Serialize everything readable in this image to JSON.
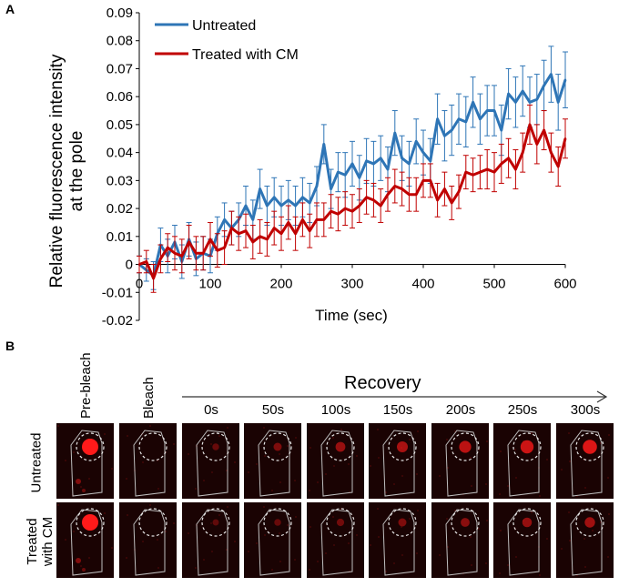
{
  "panel_a": {
    "letter": "A",
    "chart_data": {
      "type": "line",
      "xlabel": "Time (sec)",
      "ylabel_lines": [
        "Relative fluorescence intensity",
        "at the pole"
      ],
      "xlim": [
        0,
        600
      ],
      "ylim": [
        -0.02,
        0.09
      ],
      "xticks": [
        0,
        100,
        200,
        300,
        400,
        500,
        600
      ],
      "xtick_labels": [
        "0",
        "100",
        "200",
        "300",
        "400",
        "500",
        "600"
      ],
      "yticks": [
        -0.02,
        -0.01,
        0,
        0.01,
        0.02,
        0.03,
        0.04,
        0.05,
        0.06,
        0.07,
        0.08,
        0.09
      ],
      "ytick_labels": [
        "-0.02",
        "-0.01",
        "0",
        "0.01",
        "0.02",
        "0.03",
        "0.04",
        "0.05",
        "0.06",
        "0.07",
        "0.08",
        "0.09"
      ],
      "legend_position": "top-left",
      "series": [
        {
          "name": "Untreated",
          "color": "#2e75b6",
          "x": [
            0,
            10,
            20,
            30,
            40,
            50,
            60,
            70,
            80,
            90,
            100,
            110,
            120,
            130,
            140,
            150,
            160,
            170,
            180,
            190,
            200,
            210,
            220,
            230,
            240,
            250,
            260,
            270,
            280,
            290,
            300,
            310,
            320,
            330,
            340,
            350,
            360,
            370,
            380,
            390,
            400,
            410,
            420,
            430,
            440,
            450,
            460,
            470,
            480,
            490,
            500,
            510,
            520,
            530,
            540,
            550,
            560,
            570,
            580,
            590,
            600
          ],
          "values": [
            0.0,
            -0.002,
            -0.004,
            0.007,
            0.003,
            0.008,
            0.001,
            0.009,
            0.002,
            0.004,
            0.003,
            0.011,
            0.016,
            0.013,
            0.016,
            0.021,
            0.016,
            0.027,
            0.021,
            0.024,
            0.021,
            0.023,
            0.021,
            0.024,
            0.022,
            0.028,
            0.043,
            0.027,
            0.033,
            0.032,
            0.036,
            0.031,
            0.037,
            0.036,
            0.038,
            0.034,
            0.047,
            0.038,
            0.036,
            0.044,
            0.04,
            0.037,
            0.052,
            0.046,
            0.048,
            0.052,
            0.051,
            0.058,
            0.052,
            0.055,
            0.055,
            0.048,
            0.061,
            0.058,
            0.062,
            0.058,
            0.059,
            0.064,
            0.068,
            0.058,
            0.066
          ],
          "errors": [
            0.003,
            0.004,
            0.005,
            0.006,
            0.006,
            0.006,
            0.006,
            0.006,
            0.006,
            0.006,
            0.006,
            0.006,
            0.006,
            0.006,
            0.006,
            0.007,
            0.007,
            0.007,
            0.007,
            0.007,
            0.007,
            0.007,
            0.007,
            0.007,
            0.007,
            0.007,
            0.007,
            0.007,
            0.007,
            0.008,
            0.008,
            0.008,
            0.008,
            0.008,
            0.008,
            0.008,
            0.008,
            0.008,
            0.008,
            0.008,
            0.008,
            0.008,
            0.009,
            0.009,
            0.009,
            0.009,
            0.009,
            0.009,
            0.009,
            0.009,
            0.009,
            0.009,
            0.009,
            0.009,
            0.009,
            0.009,
            0.009,
            0.009,
            0.01,
            0.01,
            0.01
          ]
        },
        {
          "name": "Treated with CM",
          "color": "#c00000",
          "x": [
            0,
            10,
            20,
            30,
            40,
            50,
            60,
            70,
            80,
            90,
            100,
            110,
            120,
            130,
            140,
            150,
            160,
            170,
            180,
            190,
            200,
            210,
            220,
            230,
            240,
            250,
            260,
            270,
            280,
            290,
            300,
            310,
            320,
            330,
            340,
            350,
            360,
            370,
            380,
            390,
            400,
            410,
            420,
            430,
            440,
            450,
            460,
            470,
            480,
            490,
            500,
            510,
            520,
            530,
            540,
            550,
            560,
            570,
            580,
            590,
            600
          ],
          "values": [
            0.0,
            0.001,
            -0.005,
            0.002,
            0.006,
            0.004,
            0.003,
            0.008,
            0.004,
            0.004,
            0.009,
            0.005,
            0.006,
            0.013,
            0.011,
            0.012,
            0.008,
            0.01,
            0.009,
            0.013,
            0.011,
            0.015,
            0.011,
            0.016,
            0.012,
            0.016,
            0.016,
            0.019,
            0.018,
            0.02,
            0.019,
            0.021,
            0.024,
            0.023,
            0.021,
            0.025,
            0.028,
            0.027,
            0.025,
            0.025,
            0.03,
            0.03,
            0.023,
            0.027,
            0.022,
            0.026,
            0.033,
            0.032,
            0.033,
            0.034,
            0.033,
            0.036,
            0.038,
            0.034,
            0.04,
            0.05,
            0.043,
            0.048,
            0.04,
            0.035,
            0.045
          ],
          "errors": [
            0.003,
            0.004,
            0.005,
            0.005,
            0.005,
            0.006,
            0.006,
            0.006,
            0.006,
            0.006,
            0.006,
            0.006,
            0.006,
            0.006,
            0.006,
            0.006,
            0.006,
            0.006,
            0.006,
            0.006,
            0.006,
            0.006,
            0.006,
            0.006,
            0.006,
            0.006,
            0.006,
            0.006,
            0.006,
            0.006,
            0.006,
            0.006,
            0.006,
            0.006,
            0.006,
            0.006,
            0.006,
            0.006,
            0.006,
            0.006,
            0.006,
            0.006,
            0.006,
            0.006,
            0.006,
            0.006,
            0.006,
            0.006,
            0.006,
            0.007,
            0.007,
            0.007,
            0.007,
            0.007,
            0.007,
            0.007,
            0.007,
            0.007,
            0.007,
            0.007,
            0.007
          ]
        }
      ]
    }
  },
  "panel_b": {
    "letter": "B",
    "col_prebleach": "Pre-bleach",
    "col_bleach": "Bleach",
    "recovery_title": "Recovery",
    "recovery_times": [
      "0s",
      "50s",
      "100s",
      "150s",
      "200s",
      "250s",
      "300s"
    ],
    "row_untreated": "Untreated",
    "row_treated_line1": "Treated",
    "row_treated_line2": "with CM",
    "colors": {
      "background": "#1a0303",
      "signal": "#ff1a1a",
      "outline": "#bfbfbf"
    },
    "intensity_untreated": [
      1.0,
      0.0,
      0.12,
      0.25,
      0.4,
      0.5,
      0.6,
      0.7,
      0.8
    ],
    "intensity_treated": [
      1.0,
      0.0,
      0.08,
      0.12,
      0.18,
      0.25,
      0.32,
      0.38,
      0.45
    ]
  }
}
